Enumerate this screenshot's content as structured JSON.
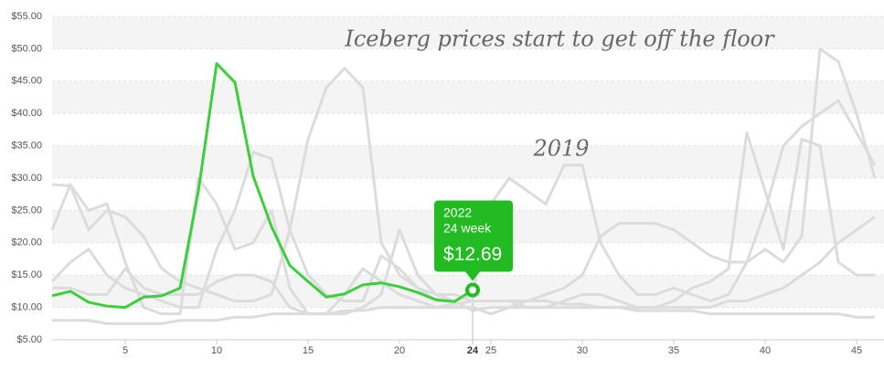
{
  "chart_data": {
    "type": "line",
    "annotations": [
      "Iceberg prices start to get off the floor",
      "2019"
    ],
    "x": [
      1,
      2,
      3,
      4,
      5,
      6,
      7,
      8,
      9,
      10,
      11,
      12,
      13,
      14,
      15,
      16,
      17,
      18,
      19,
      20,
      21,
      22,
      23,
      24,
      25,
      26,
      27,
      28,
      29,
      30,
      31,
      32,
      33,
      34,
      35,
      36,
      37,
      38,
      39,
      40,
      41,
      42,
      43,
      44,
      45,
      46
    ],
    "xlim": [
      1,
      46.5
    ],
    "xticks": [
      5,
      10,
      15,
      20,
      25,
      30,
      35,
      40,
      45
    ],
    "highlight_x": 24,
    "ylim": [
      5,
      55
    ],
    "yticks": [
      {
        "value": 5,
        "label": "$5.00"
      },
      {
        "value": 10,
        "label": "$10.00"
      },
      {
        "value": 15,
        "label": "$15.00"
      },
      {
        "value": 20,
        "label": "$20.00"
      },
      {
        "value": 25,
        "label": "$25.00"
      },
      {
        "value": 30,
        "label": "$30.00"
      },
      {
        "value": 35,
        "label": "$35.00"
      },
      {
        "value": 40,
        "label": "$40.00"
      },
      {
        "value": 45,
        "label": "$45.00"
      },
      {
        "value": 50,
        "label": "$50.00"
      },
      {
        "value": 55,
        "label": "$55.00"
      }
    ],
    "grid": true,
    "series": [
      {
        "color": "#dcdcdc",
        "values": [
          29,
          28.8,
          22,
          25,
          24,
          21,
          16,
          14,
          13,
          12,
          11,
          11,
          12,
          22,
          36,
          44,
          47,
          44,
          20,
          15,
          13,
          12,
          12,
          11,
          11,
          11,
          10,
          10,
          10,
          10,
          10,
          10,
          10,
          10,
          10,
          10,
          10,
          11,
          11,
          12,
          13,
          15,
          17,
          20,
          22,
          24
        ]
      },
      {
        "color": "#dcdcdc",
        "values": [
          22,
          29,
          25,
          26,
          17,
          10,
          9,
          9,
          30,
          26,
          19,
          20,
          25,
          13,
          9,
          9,
          9,
          10,
          12,
          22,
          15,
          12,
          11,
          12,
          26,
          30,
          28,
          26,
          32,
          32,
          20,
          15,
          12,
          12,
          13,
          12,
          11,
          12,
          17,
          25,
          35,
          38,
          40,
          42,
          37,
          32
        ]
      },
      {
        "color": "#dcdcdc",
        "values": [
          8,
          8,
          8,
          7.5,
          7.5,
          7.5,
          7.5,
          8,
          8,
          8,
          8.5,
          8.5,
          9,
          9,
          9,
          9,
          9.5,
          9.5,
          10,
          10,
          10,
          10,
          10.5,
          11,
          11,
          11,
          11,
          11,
          10.5,
          10.5,
          10,
          10,
          9.5,
          9.5,
          9.5,
          9.5,
          9,
          9,
          9,
          9,
          9,
          9,
          9,
          9,
          8.5,
          8.5
        ]
      },
      {
        "color": "#dcdcdc",
        "values": [
          14,
          17,
          19,
          15,
          13,
          12,
          11,
          10,
          10,
          19,
          25,
          34,
          33,
          22,
          15,
          12,
          11,
          11,
          18,
          16,
          13,
          11,
          11,
          9.5,
          10,
          10,
          11,
          12,
          13,
          15,
          21,
          23,
          23,
          23,
          22,
          20,
          18,
          17,
          17,
          19,
          17,
          21,
          50,
          48,
          40,
          30
        ]
      },
      {
        "color": "#dcdcdc",
        "values": [
          13,
          13,
          12,
          12,
          16,
          13,
          12,
          12,
          12,
          14,
          15,
          15,
          14,
          10,
          9,
          9,
          12,
          16,
          14,
          12,
          11,
          10,
          10,
          10,
          9,
          10,
          10,
          10,
          11,
          12,
          12,
          11,
          10,
          10,
          11,
          13,
          14,
          16,
          37,
          28,
          19,
          36,
          35,
          17,
          15,
          15
        ]
      },
      {
        "color": "#3ccf3c",
        "values": [
          11.8,
          12.5,
          10.8,
          10.2,
          10.0,
          11.6,
          11.8,
          13.0,
          28,
          47.7,
          44.8,
          30.3,
          22.5,
          16.5,
          14.0,
          11.6,
          12.1,
          13.5,
          13.8,
          13.2,
          12.3,
          11.2,
          10.9,
          12.69,
          null,
          null,
          null,
          null,
          null,
          null,
          null,
          null,
          null,
          null,
          null,
          null,
          null,
          null,
          null,
          null,
          null,
          null,
          null,
          null,
          null,
          null
        ]
      }
    ],
    "tooltip": {
      "lines": [
        "2022",
        "24 week"
      ],
      "value_label": "$12.69",
      "series": 5,
      "index": 23,
      "color": "#22bb22"
    }
  }
}
